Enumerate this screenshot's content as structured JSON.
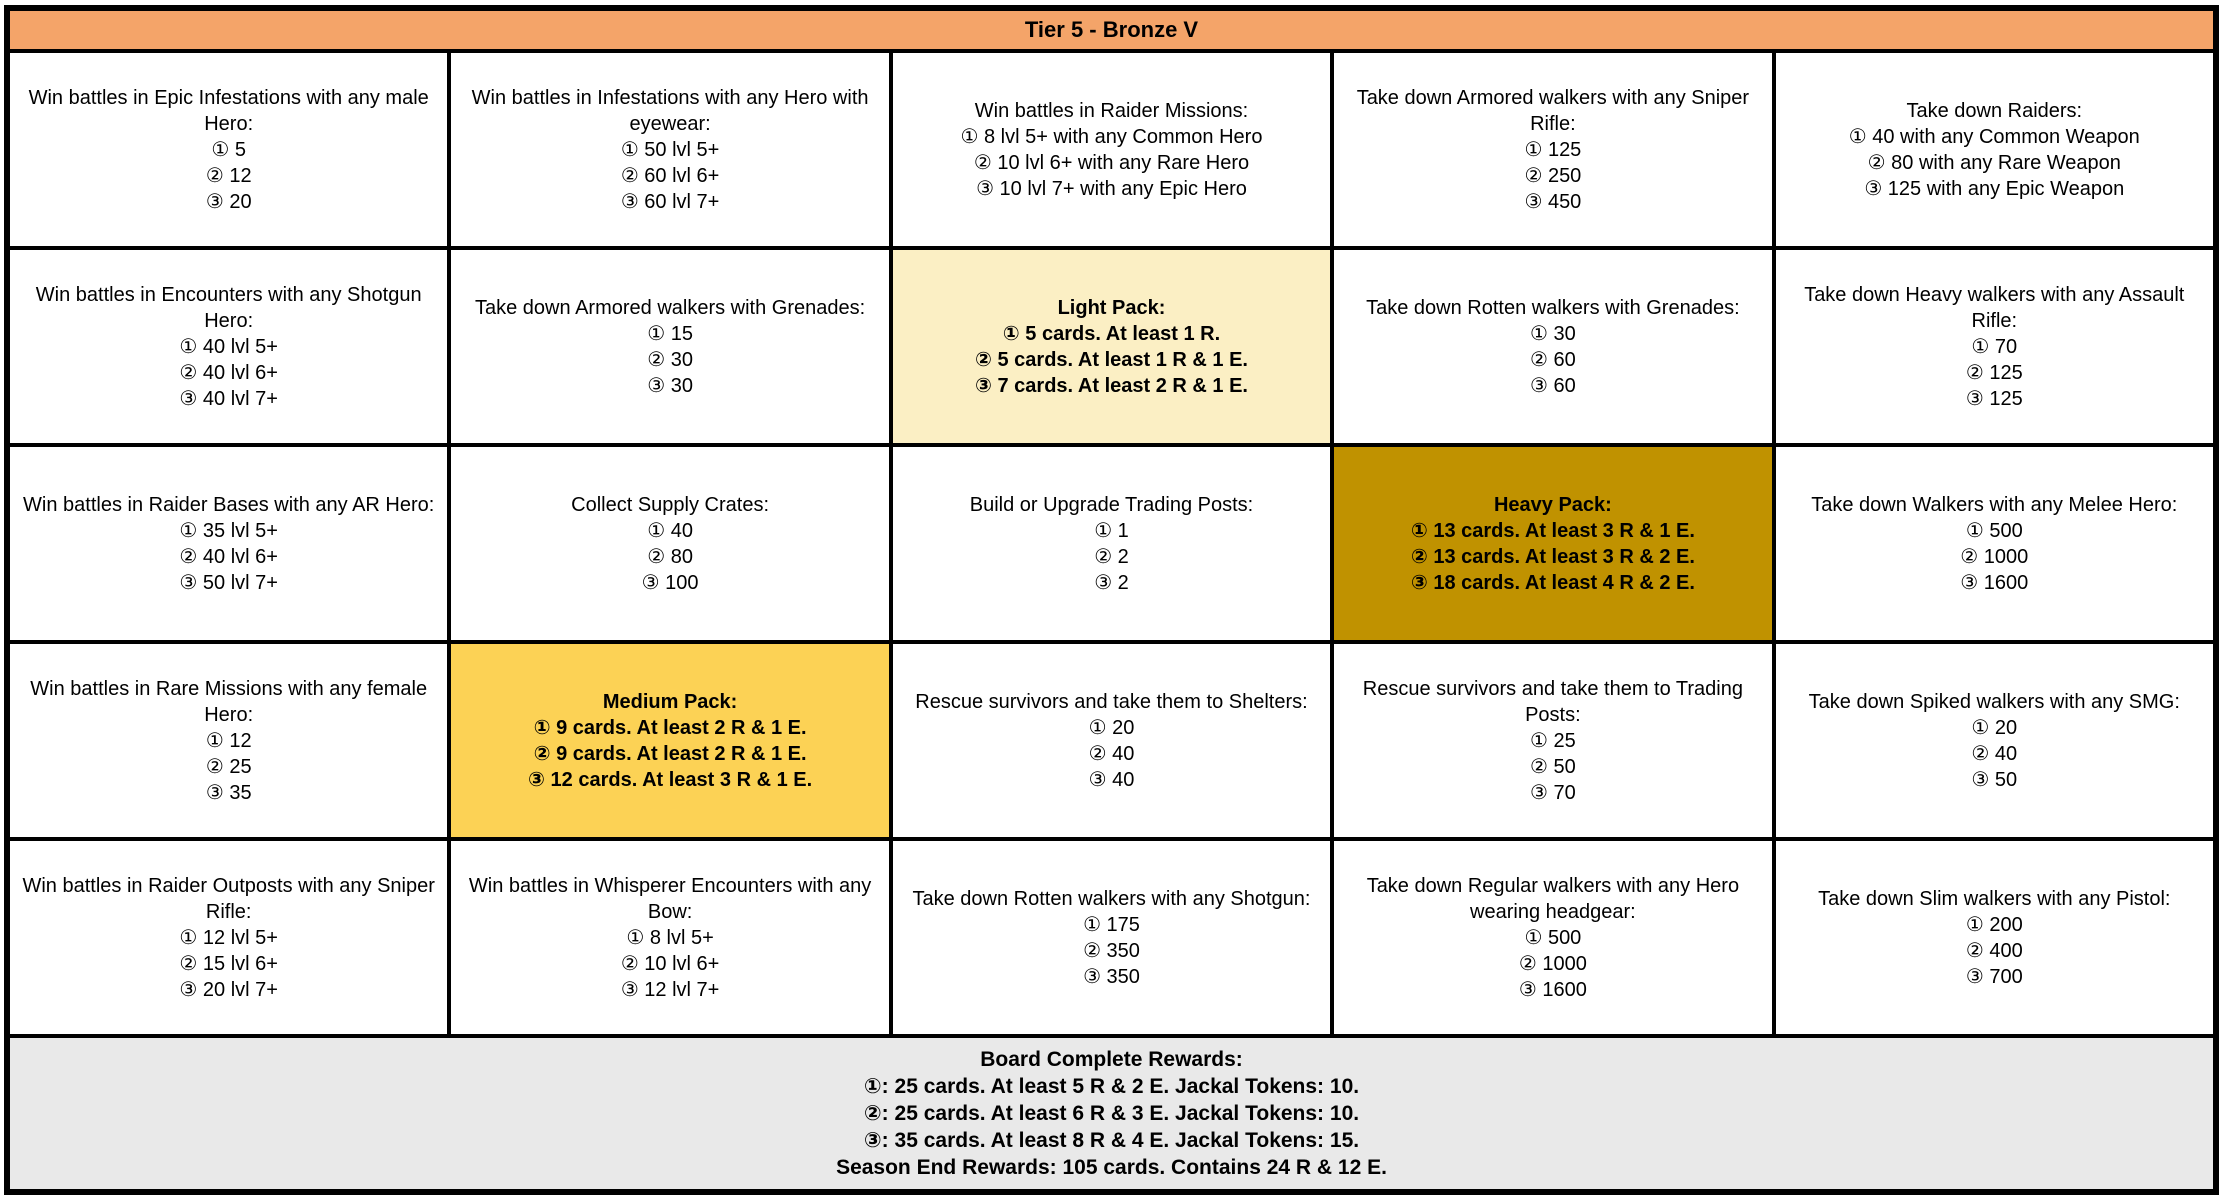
{
  "title": "Tier 5 - Bronze V",
  "colors": {
    "header_bg": "#F4A469",
    "light_pack_bg": "#FBEFC4",
    "medium_pack_bg": "#FCD255",
    "heavy_pack_bg": "#C09200",
    "footer_bg": "#E9E9E9",
    "border": "#000000"
  },
  "grid": {
    "rows": [
      {
        "cells": [
          {
            "desc": "Win battles in Epic Infestations with any male Hero:",
            "goals": [
              "① 5",
              "② 12",
              "③ 20"
            ]
          },
          {
            "desc": "Win battles in Infestations with any Hero with eyewear:",
            "goals": [
              "① 50 lvl 5+",
              "② 60 lvl 6+",
              "③ 60 lvl 7+"
            ]
          },
          {
            "desc": "Win battles in Raider Missions:",
            "goals": [
              "① 8 lvl 5+ with any Common Hero",
              "② 10 lvl 6+ with any Rare Hero",
              "③ 10 lvl 7+ with any Epic Hero"
            ]
          },
          {
            "desc": "Take down Armored walkers with any Sniper Rifle:",
            "goals": [
              "① 125",
              "② 250",
              "③ 450"
            ]
          },
          {
            "desc": "Take down Raiders:",
            "goals": [
              "① 40 with any Common Weapon",
              "② 80 with any Rare Weapon",
              "③ 125 with any Epic Weapon"
            ]
          }
        ]
      },
      {
        "cells": [
          {
            "desc": "Win battles in Encounters with any Shotgun Hero:",
            "goals": [
              "① 40 lvl 5+",
              "② 40 lvl 6+",
              "③ 40 lvl 7+"
            ]
          },
          {
            "desc": "Take down Armored walkers with Grenades:",
            "goals": [
              "① 15",
              "② 30",
              "③ 30"
            ]
          },
          {
            "desc": "Light Pack:",
            "goals": [
              "① 5 cards. At least 1 R.",
              "② 5 cards. At least 1 R & 1 E.",
              "③ 7 cards. At least 2 R & 1 E."
            ]
          },
          {
            "desc": "Take down Rotten walkers with Grenades:",
            "goals": [
              "① 30",
              "② 60",
              "③ 60"
            ]
          },
          {
            "desc": "Take down Heavy walkers with any Assault Rifle:",
            "goals": [
              "① 70",
              "② 125",
              "③ 125"
            ]
          }
        ]
      },
      {
        "cells": [
          {
            "desc": "Win battles in Raider Bases with any AR Hero:",
            "goals": [
              "① 35 lvl 5+",
              "② 40 lvl 6+",
              "③ 50 lvl 7+"
            ]
          },
          {
            "desc": "Collect Supply Crates:",
            "goals": [
              "① 40",
              "② 80",
              "③ 100"
            ]
          },
          {
            "desc": "Build or Upgrade Trading Posts:",
            "goals": [
              "① 1",
              "② 2",
              "③ 2"
            ]
          },
          {
            "desc": "Heavy Pack:",
            "goals": [
              "① 13 cards. At least 3 R & 1 E.",
              "② 13 cards. At least 3 R & 2 E.",
              "③ 18 cards. At least 4 R & 2 E."
            ]
          },
          {
            "desc": "Take down Walkers with any Melee Hero:",
            "goals": [
              "① 500",
              "② 1000",
              "③ 1600"
            ]
          }
        ]
      },
      {
        "cells": [
          {
            "desc": "Win battles in Rare Missions with any female Hero:",
            "goals": [
              "① 12",
              "② 25",
              "③ 35"
            ]
          },
          {
            "desc": "Medium Pack:",
            "goals": [
              "① 9 cards. At least 2 R & 1 E.",
              "② 9 cards. At least 2 R & 1 E.",
              "③ 12 cards. At least 3 R & 1 E."
            ]
          },
          {
            "desc": "Rescue survivors and take them to Shelters:",
            "goals": [
              "① 20",
              "② 40",
              "③ 40"
            ]
          },
          {
            "desc": "Rescue survivors and take them to Trading Posts:",
            "goals": [
              "① 25",
              "② 50",
              "③ 70"
            ]
          },
          {
            "desc": "Take down Spiked walkers with any SMG:",
            "goals": [
              "① 20",
              "② 40",
              "③ 50"
            ]
          }
        ]
      },
      {
        "cells": [
          {
            "desc": "Win battles in Raider Outposts with any Sniper Rifle:",
            "goals": [
              "① 12 lvl 5+",
              "② 15 lvl 6+",
              "③ 20 lvl 7+"
            ]
          },
          {
            "desc": "Win battles in Whisperer Encounters with any Bow:",
            "goals": [
              "① 8 lvl 5+",
              "② 10 lvl 6+",
              "③ 12 lvl 7+"
            ]
          },
          {
            "desc": "Take down Rotten walkers with any Shotgun:",
            "goals": [
              "① 175",
              "② 350",
              "③ 350"
            ]
          },
          {
            "desc": "Take down Regular walkers with any Hero wearing headgear:",
            "goals": [
              "① 500",
              "② 1000",
              "③ 1600"
            ]
          },
          {
            "desc": "Take down Slim walkers with any Pistol:",
            "goals": [
              "① 200",
              "② 400",
              "③ 700"
            ]
          }
        ]
      }
    ]
  },
  "footer": {
    "title": "Board Complete Rewards:",
    "lines": [
      "①: 25 cards. At least 5 R & 2 E. Jackal Tokens: 10.",
      "②: 25 cards. At least 6 R & 3 E. Jackal Tokens: 10.",
      "③: 35 cards. At least 8 R & 4 E. Jackal Tokens: 15.",
      "Season End Rewards: 105 cards. Contains 24 R & 12 E."
    ]
  }
}
